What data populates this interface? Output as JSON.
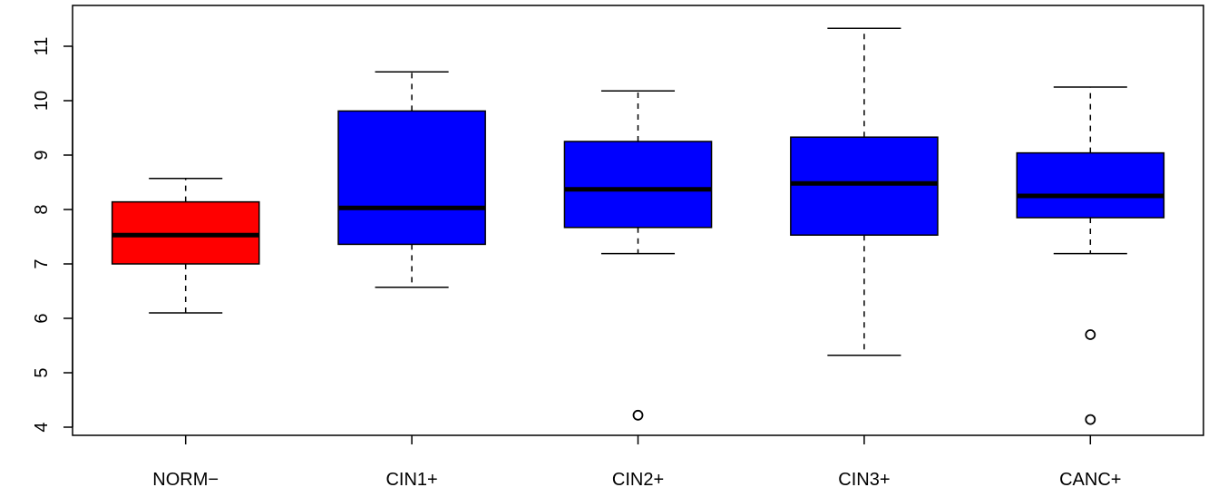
{
  "chart_data": {
    "type": "boxplot",
    "title": "",
    "xlabel": "",
    "ylabel": "",
    "ylim": [
      3.85,
      11.75
    ],
    "yticks": [
      4,
      5,
      6,
      7,
      8,
      9,
      10,
      11
    ],
    "grid": false,
    "categories": [
      "NORM−",
      "CIN1+",
      "CIN2+",
      "CIN3+",
      "CANC+"
    ],
    "boxes": [
      {
        "category": "NORM−",
        "whisker_low": 6.1,
        "q1": 7.0,
        "median": 7.53,
        "q3": 8.14,
        "whisker_high": 8.57,
        "outliers": [],
        "color": "#ff0000"
      },
      {
        "category": "CIN1+",
        "whisker_low": 6.57,
        "q1": 7.36,
        "median": 8.03,
        "q3": 9.81,
        "whisker_high": 10.53,
        "outliers": [],
        "color": "#0000ff"
      },
      {
        "category": "CIN2+",
        "whisker_low": 7.19,
        "q1": 7.67,
        "median": 8.37,
        "q3": 9.25,
        "whisker_high": 10.18,
        "outliers": [
          4.22
        ],
        "color": "#0000ff"
      },
      {
        "category": "CIN3+",
        "whisker_low": 5.32,
        "q1": 7.53,
        "median": 8.48,
        "q3": 9.33,
        "whisker_high": 11.33,
        "outliers": [],
        "color": "#0000ff"
      },
      {
        "category": "CANC+",
        "whisker_low": 7.19,
        "q1": 7.85,
        "median": 8.25,
        "q3": 9.04,
        "whisker_high": 10.25,
        "outliers": [
          5.7,
          4.14
        ],
        "color": "#0000ff"
      }
    ]
  }
}
